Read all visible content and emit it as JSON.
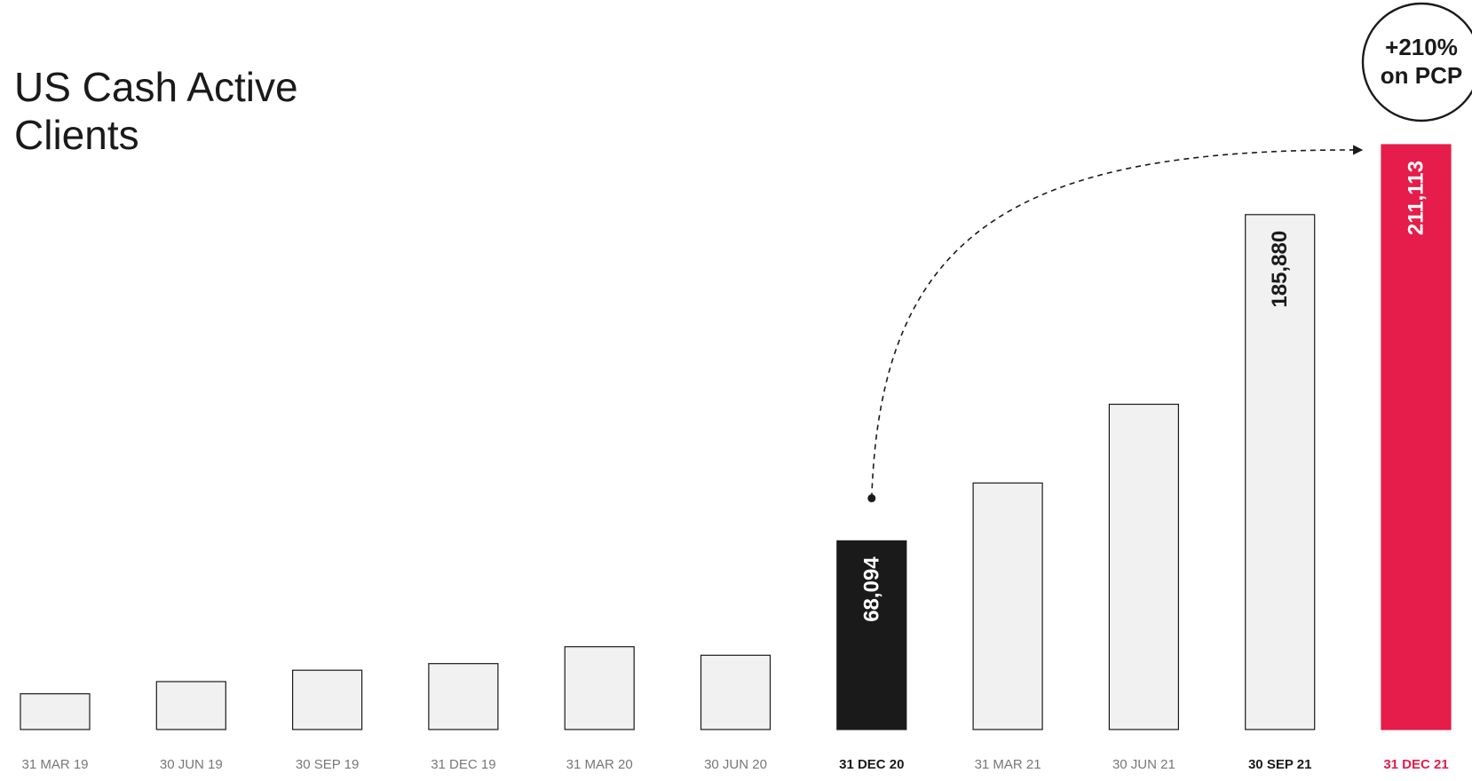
{
  "chart_data": {
    "type": "bar",
    "title": "US Cash Active Clients",
    "title_lines": [
      "US Cash Active",
      "Clients"
    ],
    "categories": [
      "31 MAR 19",
      "30 JUN 19",
      "30 SEP 19",
      "31 DEC 19",
      "31 MAR 20",
      "30 JUN 20",
      "31 DEC 20",
      "31 MAR 21",
      "30 JUN 21",
      "30 SEP 21",
      "31 DEC 21"
    ],
    "values": [
      12900,
      17300,
      21400,
      23800,
      29900,
      26800,
      68094,
      89000,
      117400,
      185880,
      211113
    ],
    "value_labels": [
      null,
      null,
      null,
      null,
      null,
      null,
      "68,094",
      null,
      null,
      "185,880",
      "211,113"
    ],
    "highlight": {
      "31 DEC 20": "dark",
      "30 SEP 21": "bold-label",
      "31 DEC 21": "accent"
    },
    "annotation": {
      "text_lines": [
        "+210%",
        "on PCP"
      ],
      "from": "31 DEC 20",
      "to": "31 DEC 21",
      "style": "dashed-arrow-in-circle"
    },
    "ylim": [
      0,
      211113
    ],
    "grid": false,
    "legend": "none",
    "xlabel": "",
    "ylabel": ""
  },
  "colors": {
    "bar_fill": "#f0f1f0",
    "bar_stroke": "#1a1a1a",
    "dark_bar": "#1a1a1a",
    "accent": "#e61c4a",
    "text": "#1a1a1a",
    "muted_label": "#777777",
    "background": "#ffffff"
  }
}
